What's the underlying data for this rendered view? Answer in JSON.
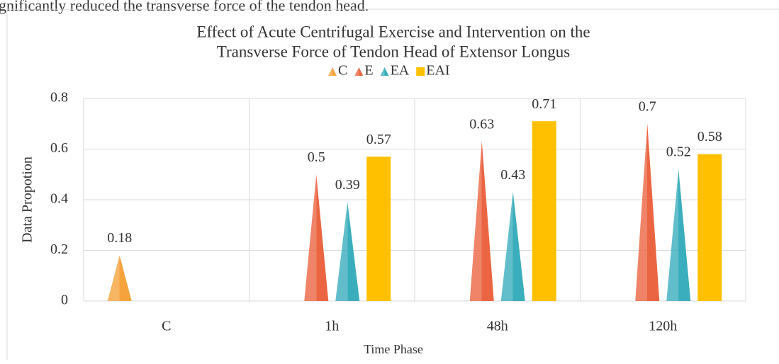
{
  "header_text": "gnificantly reduced the transverse force of the tendon head.",
  "chart_data": {
    "type": "bar",
    "title": [
      "Effect of Acute Centrifugal Exercise and Intervention on the",
      "Transverse Force of Tendon Head of Extensor Longus"
    ],
    "x_label": "Time Phase",
    "y_label": "Data Propotion",
    "categories": [
      "C",
      "1h",
      "48h",
      "120h"
    ],
    "series": [
      {
        "name": "C",
        "color": "#f5a33c",
        "shape": "triangle",
        "values": [
          0.18,
          null,
          null,
          null
        ]
      },
      {
        "name": "E",
        "color": "#eb6542",
        "shape": "triangle",
        "values": [
          null,
          0.5,
          0.63,
          0.7
        ]
      },
      {
        "name": "EA",
        "color": "#3aaebc",
        "shape": "triangle",
        "values": [
          null,
          0.39,
          0.43,
          0.52
        ]
      },
      {
        "name": "EAI",
        "color": "#ffc000",
        "shape": "bar",
        "values": [
          null,
          0.57,
          0.71,
          0.58
        ]
      }
    ],
    "ylim": [
      0,
      0.8
    ],
    "yticks": [
      0,
      0.2,
      0.4,
      0.6,
      0.8
    ],
    "grid": true,
    "legend": "top"
  }
}
